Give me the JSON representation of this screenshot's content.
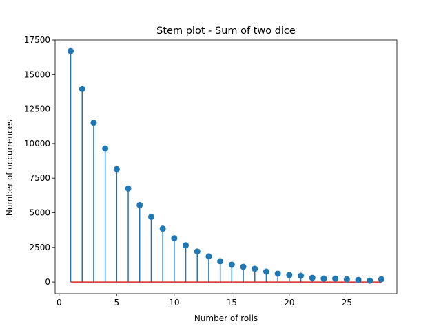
{
  "chart_data": {
    "type": "stem",
    "title": "Stem plot - Sum of two dice",
    "xlabel": "Number of rolls",
    "ylabel": "Number of occurrences",
    "xlim": [
      -0.35,
      29.35
    ],
    "ylim": [
      -840,
      17500
    ],
    "xticks": [
      0,
      5,
      10,
      15,
      20,
      25
    ],
    "yticks": [
      0,
      2500,
      5000,
      7500,
      10000,
      12500,
      15000,
      17500
    ],
    "x": [
      1,
      2,
      3,
      4,
      5,
      6,
      7,
      8,
      9,
      10,
      11,
      12,
      13,
      14,
      15,
      16,
      17,
      18,
      19,
      20,
      21,
      22,
      23,
      24,
      25,
      26,
      27,
      28
    ],
    "values": [
      16700,
      13950,
      11500,
      9650,
      8150,
      6750,
      5550,
      4700,
      3850,
      3150,
      2650,
      2200,
      1850,
      1500,
      1250,
      1100,
      950,
      750,
      600,
      500,
      450,
      300,
      250,
      250,
      200,
      150,
      100,
      200
    ],
    "colors": {
      "stem": "#1f77b4",
      "marker": "#1f77b4",
      "baseline": "#d62728"
    },
    "baseline": 0,
    "grid": false,
    "legend": "none"
  }
}
